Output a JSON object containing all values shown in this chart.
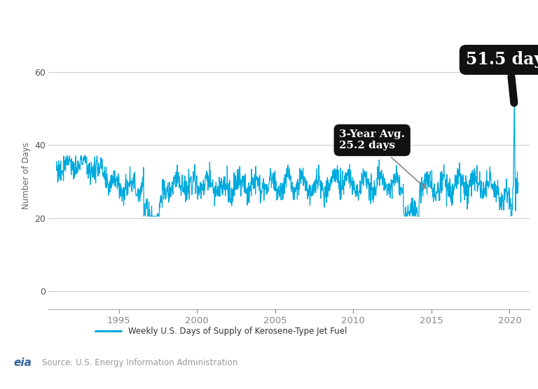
{
  "title": "Weekly U.S. Days Of Supply Of Kerosene-Type Jet Fuel",
  "title_bg_color": "#B8860B",
  "title_text_color": "#FFFFFF",
  "ylabel": "Number of Days",
  "line_color": "#00AADD",
  "line_label": "Weekly U.S. Days of Supply of Kerosene-Type Jet Fuel",
  "source": "Source: U.S. Energy Information Administration",
  "yticks": [
    0,
    20,
    40,
    60
  ],
  "ylim": [
    -5,
    68
  ],
  "xlim_start": 1990.5,
  "xlim_end": 2021.3,
  "xtick_years": [
    1995,
    2000,
    2005,
    2010,
    2015,
    2020
  ],
  "bg_color": "#FFFFFF",
  "grid_color": "#CCCCCC",
  "legend_bg": "#E8E8E8"
}
